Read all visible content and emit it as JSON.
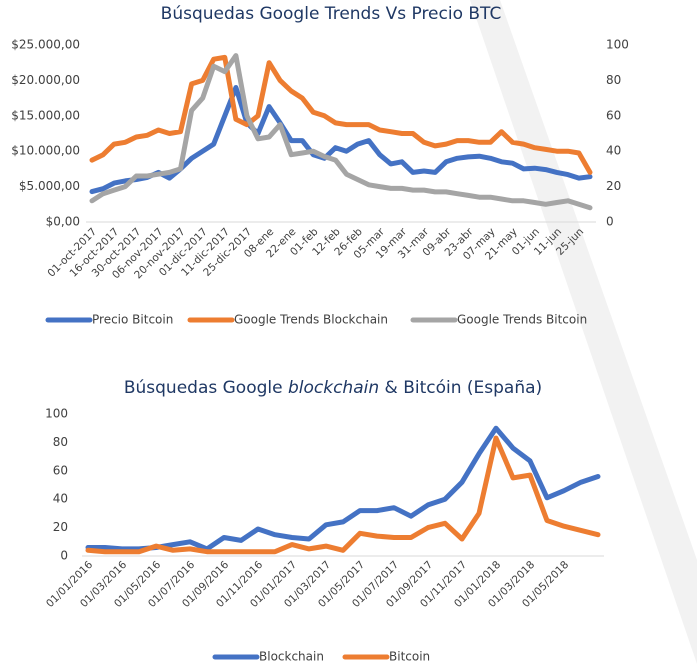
{
  "chart_data": [
    {
      "type": "line",
      "title": "Búsquedas Google Trends Vs Precio BTC",
      "categories": [
        "01-oct-2017",
        null,
        "16-oct-2017",
        null,
        "30-oct-2017",
        null,
        "06-nov-2017",
        null,
        "20-nov-2017",
        null,
        "01-dic-2017",
        null,
        "11-dic-2017",
        null,
        "25-dic-2017",
        null,
        "08-ene",
        null,
        "22-ene",
        null,
        "01-feb",
        null,
        "12-feb",
        null,
        "26-feb",
        null,
        "05-mar",
        null,
        "19-mar",
        null,
        "31-mar",
        null,
        "09-abr",
        null,
        "23-abr",
        null,
        "07-may",
        null,
        "21-may",
        null,
        "01-jun",
        null,
        "11-jun",
        null,
        "25-jun",
        null
      ],
      "series": [
        {
          "name": "Precio Bitcoin",
          "color": "#4472c4",
          "axis": "y",
          "values": [
            4300,
            4700,
            5500,
            5800,
            6000,
            6300,
            7000,
            6200,
            7500,
            9000,
            10000,
            11000,
            15000,
            19000,
            14000,
            12500,
            16300,
            14000,
            11500,
            11500,
            9500,
            9000,
            10500,
            10000,
            11000,
            11500,
            9500,
            8200,
            8500,
            7000,
            7200,
            7000,
            8500,
            9000,
            9200,
            9300,
            9000,
            8500,
            8300,
            7500,
            7600,
            7400,
            7000,
            6700,
            6200,
            6400
          ]
        },
        {
          "name": "Google Trends Blockchain",
          "color": "#ed7d31",
          "axis": "y2",
          "values": [
            35,
            38,
            44,
            45,
            48,
            49,
            52,
            50,
            51,
            78,
            80,
            92,
            93,
            58,
            55,
            60,
            90,
            80,
            74,
            70,
            62,
            60,
            56,
            55,
            55,
            55,
            52,
            51,
            50,
            50,
            45,
            43,
            44,
            46,
            46,
            45,
            45,
            51,
            45,
            44,
            42,
            41,
            40,
            40,
            39,
            28
          ]
        },
        {
          "name": "Google Trends Bitcoin",
          "color": "#a5a5a5",
          "axis": "y2",
          "values": [
            12,
            16,
            18,
            20,
            26,
            26,
            27,
            28,
            30,
            63,
            70,
            88,
            85,
            94,
            60,
            47,
            48,
            55,
            38,
            39,
            40,
            37,
            35,
            27,
            24,
            21,
            20,
            19,
            19,
            18,
            18,
            17,
            17,
            16,
            15,
            14,
            14,
            13,
            12,
            12,
            11,
            10,
            11,
            12,
            10,
            8
          ]
        }
      ],
      "ylim": [
        0,
        25000
      ],
      "yticks": [
        {
          "value": 0,
          "label": "$0,00"
        },
        {
          "value": 5000,
          "label": "$5.000,00"
        },
        {
          "value": 10000,
          "label": "$10.000,00"
        },
        {
          "value": 15000,
          "label": "$15.000,00"
        },
        {
          "value": 20000,
          "label": "$20.000,00"
        },
        {
          "value": 25000,
          "label": "$25.000,00"
        }
      ],
      "y2lim": [
        0,
        100
      ],
      "y2ticks": [
        0,
        20,
        40,
        60,
        80,
        100
      ],
      "legend": "bottom"
    },
    {
      "type": "line",
      "title": [
        "Búsquedas Google ",
        "blockchain",
        " & Bitcóin (España)"
      ],
      "categories": [
        "01/01/2016",
        null,
        "01/03/2016",
        null,
        "01/05/2016",
        null,
        "01/07/2016",
        null,
        "01/09/2016",
        null,
        "01/11/2016",
        null,
        "01/01/2017",
        null,
        "01/03/2017",
        null,
        "01/05/2017",
        null,
        "01/07/2017",
        null,
        "01/09/2017",
        null,
        "01/11/2017",
        null,
        "01/01/2018",
        null,
        "01/03/2018",
        null,
        "01/05/2018",
        null,
        null
      ],
      "series": [
        {
          "name": "Blockchain",
          "color": "#4472c4",
          "values": [
            6,
            6,
            5,
            5,
            6,
            8,
            10,
            5,
            13,
            11,
            19,
            15,
            13,
            12,
            22,
            24,
            32,
            32,
            34,
            28,
            36,
            40,
            52,
            72,
            90,
            76,
            67,
            41,
            46,
            52,
            56
          ]
        },
        {
          "name": "Bitcoin",
          "color": "#ed7d31",
          "values": [
            4,
            3,
            3,
            3,
            7,
            4,
            5,
            3,
            3,
            3,
            3,
            3,
            8,
            5,
            7,
            4,
            16,
            14,
            13,
            13,
            20,
            23,
            12,
            30,
            83,
            55,
            57,
            25,
            21,
            18,
            15
          ]
        }
      ],
      "ylim": [
        0,
        100
      ],
      "yticks": [
        0,
        20,
        40,
        60,
        80,
        100
      ],
      "legend": "bottom"
    }
  ]
}
